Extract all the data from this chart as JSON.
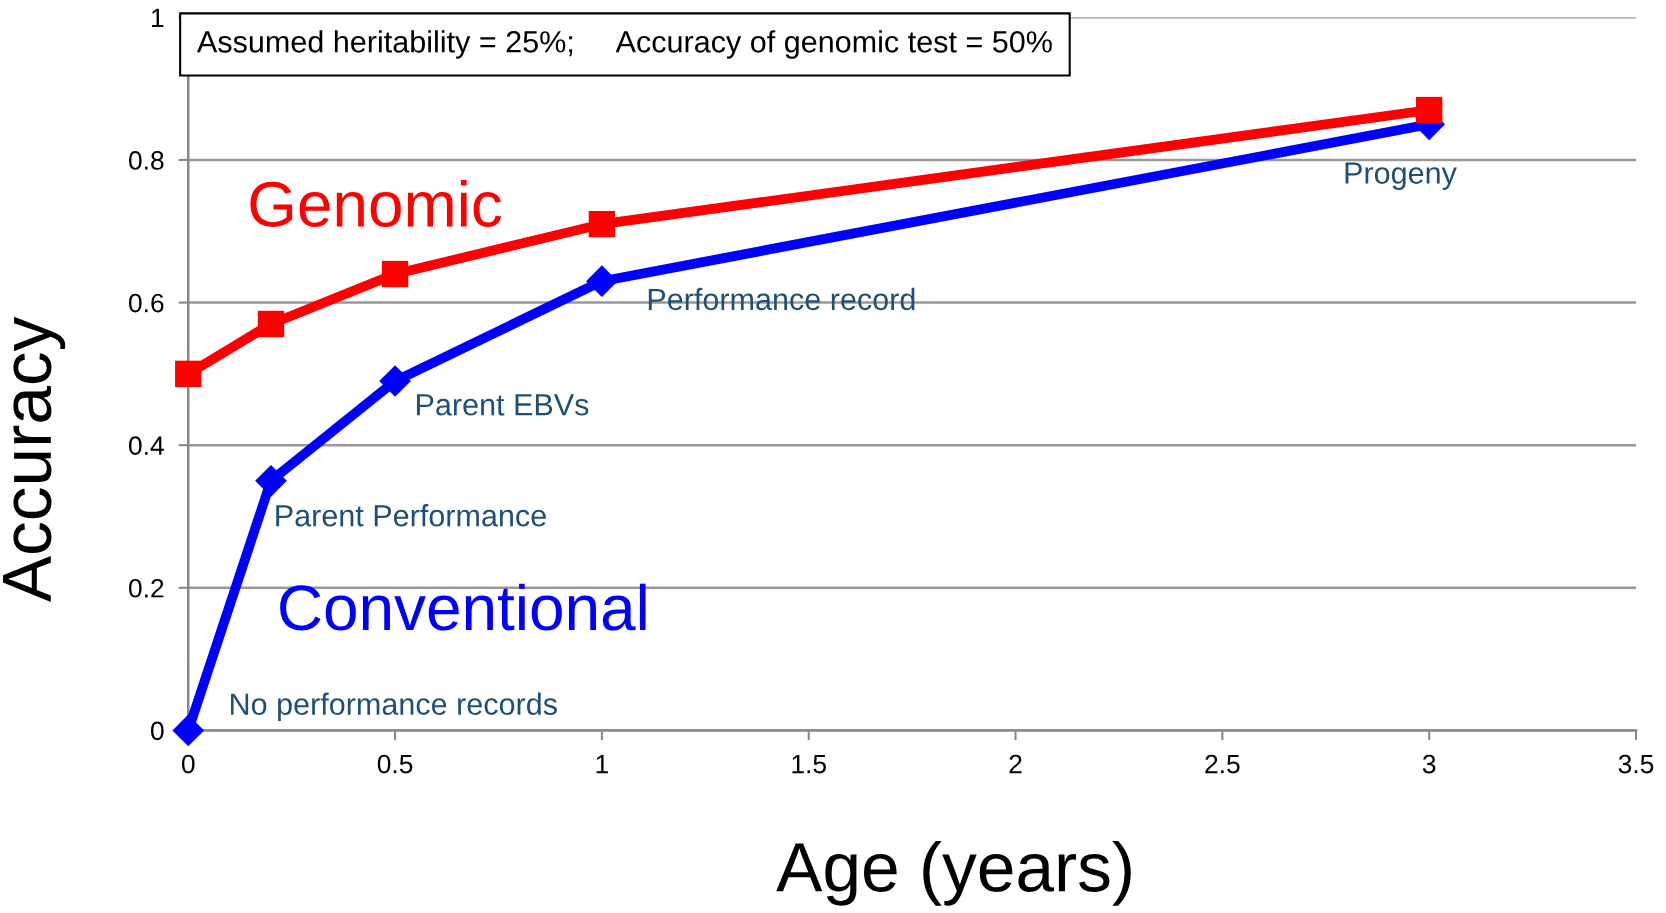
{
  "chart_data": {
    "type": "line",
    "xlabel": "Age (years)",
    "ylabel": "Accuracy",
    "x": [
      0,
      0.2,
      0.5,
      1,
      3
    ],
    "series": [
      {
        "name": "Genomic",
        "color": "#ff0000",
        "marker": "square",
        "values": [
          0.5,
          0.57,
          0.64,
          0.71,
          0.87
        ]
      },
      {
        "name": "Conventional",
        "color": "#0000ff",
        "marker": "diamond",
        "values": [
          0,
          0.35,
          0.49,
          0.63,
          0.85
        ]
      }
    ],
    "xlim": [
      0,
      3.5
    ],
    "xticks": [
      0,
      0.5,
      1,
      1.5,
      2,
      2.5,
      3,
      3.5
    ],
    "ylim": [
      0,
      1
    ],
    "yticks": [
      0,
      0.2,
      0.4,
      0.6,
      0.8,
      1
    ],
    "grid": "y",
    "legend": false,
    "line_style": "solid",
    "annotations": [
      "Assumed heritability = 25%;     Accuracy of genomic test = 50%",
      {
        "text": "No performance records",
        "x": 0,
        "y": 0
      },
      {
        "text": "Parent Performance",
        "x": 0.2,
        "y": 0.35
      },
      {
        "text": "Parent EBVs",
        "x": 0.5,
        "y": 0.49
      },
      {
        "text": "Performance record",
        "x": 1,
        "y": 0.63
      },
      {
        "text": "Progeny",
        "x": 3,
        "y": 0.85
      }
    ]
  }
}
